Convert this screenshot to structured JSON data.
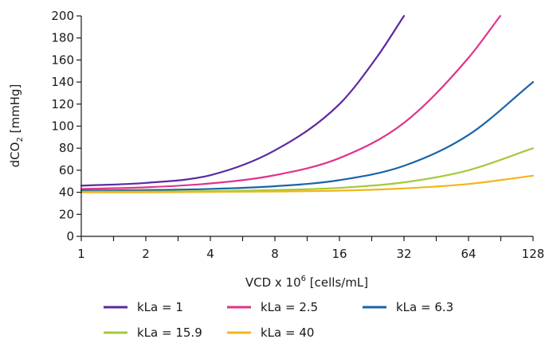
{
  "chart_data": {
    "type": "line",
    "title": "",
    "xlabel": {
      "prefix": "VCD x 10",
      "superscript": "6",
      "suffix": " [cells/mL]"
    },
    "ylabel": {
      "prefix": "dCO",
      "subscript": "2",
      "suffix": " [mmHg]"
    },
    "x_scale": "log2",
    "xlim": [
      1,
      128
    ],
    "ylim": [
      0,
      200
    ],
    "x_ticks": [
      1,
      2,
      4,
      8,
      16,
      32,
      64,
      128
    ],
    "x_tick_labels": [
      "1",
      "2",
      "4",
      "8",
      "16",
      "32",
      "64",
      "128"
    ],
    "y_ticks": [
      0,
      20,
      40,
      60,
      80,
      100,
      120,
      140,
      160,
      180,
      200
    ],
    "y_tick_labels": [
      "0",
      "20",
      "40",
      "60",
      "80",
      "100",
      "120",
      "140",
      "160",
      "180",
      "200"
    ],
    "grid": false,
    "legend_position": "bottom",
    "series": [
      {
        "name": "kLa = 1",
        "color": "#5b2a9e",
        "points": [
          [
            1,
            46
          ],
          [
            2,
            48.5
          ],
          [
            4,
            55.5
          ],
          [
            8,
            78
          ],
          [
            16,
            120
          ],
          [
            24,
            163
          ],
          [
            32,
            200
          ]
        ]
      },
      {
        "name": "kLa = 2.5",
        "color": "#e0338c",
        "points": [
          [
            1,
            43
          ],
          [
            2,
            44.5
          ],
          [
            4,
            48
          ],
          [
            8,
            55.5
          ],
          [
            16,
            71
          ],
          [
            32,
            103
          ],
          [
            64,
            162
          ],
          [
            90,
            200
          ]
        ]
      },
      {
        "name": "kLa = 6.3",
        "color": "#1a64aa",
        "points": [
          [
            1,
            41.5
          ],
          [
            2,
            42
          ],
          [
            4,
            43
          ],
          [
            8,
            45.5
          ],
          [
            16,
            51
          ],
          [
            32,
            64
          ],
          [
            64,
            92
          ],
          [
            128,
            140
          ]
        ]
      },
      {
        "name": "kLa = 15.9",
        "color": "#a5c93a",
        "points": [
          [
            1,
            40.5
          ],
          [
            2,
            40.7
          ],
          [
            4,
            41
          ],
          [
            8,
            42
          ],
          [
            16,
            44
          ],
          [
            32,
            49
          ],
          [
            64,
            60
          ],
          [
            128,
            80
          ]
        ]
      },
      {
        "name": "kLa = 40",
        "color": "#f2b619",
        "points": [
          [
            1,
            40
          ],
          [
            2,
            40
          ],
          [
            4,
            40.3
          ],
          [
            8,
            40.7
          ],
          [
            16,
            41.5
          ],
          [
            32,
            43.5
          ],
          [
            64,
            47.5
          ],
          [
            128,
            55
          ]
        ]
      }
    ]
  }
}
